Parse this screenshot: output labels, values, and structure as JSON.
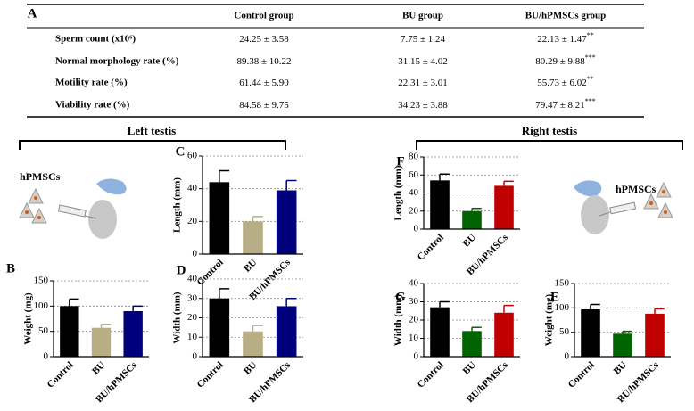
{
  "panel_a": "A",
  "table": {
    "columns": [
      "Control group",
      "BU group",
      "BU/hPMSCs group"
    ],
    "rows": [
      {
        "label": "Sperm count (x10⁶)",
        "cells": [
          {
            "text": "24.25 ± 3.58"
          },
          {
            "text": "7.75 ± 1.24"
          },
          {
            "text": "22.13 ± 1.47",
            "sig": "**"
          }
        ]
      },
      {
        "label": "Normal morphology rate (%)",
        "cells": [
          {
            "text": "89.38 ± 10.22"
          },
          {
            "text": "31.15 ± 4.02"
          },
          {
            "text": "80.29 ± 9.88",
            "sig": "***"
          }
        ]
      },
      {
        "label": "Motility rate (%)",
        "cells": [
          {
            "text": "61.44 ± 5.90"
          },
          {
            "text": "22.31 ± 3.01"
          },
          {
            "text": "55.73 ± 6.02",
            "sig": "**"
          }
        ]
      },
      {
        "label": "Viability rate (%)",
        "cells": [
          {
            "text": "84.58 ± 9.75"
          },
          {
            "text": "34.23 ± 3.88"
          },
          {
            "text": "79.47 ± 8.21",
            "sig": "***"
          }
        ]
      }
    ]
  },
  "sections": {
    "left": "Left testis",
    "right": "Right testis"
  },
  "diagram": {
    "left_cells": "hPMSCs",
    "right_cells": "hPMSCs"
  },
  "chart_data": [
    {
      "type": "bar",
      "panel": "C",
      "ylabel": "Length (mm)",
      "categories": [
        "Control",
        "BU",
        "BU/hPMSCs"
      ],
      "values": [
        44,
        20,
        39
      ],
      "errors": [
        7,
        3,
        6
      ],
      "colors": [
        "#000000",
        "#b8ae86",
        "#00007f"
      ],
      "ylim": [
        0,
        60
      ],
      "yticks": [
        0,
        20,
        40,
        60
      ],
      "grid": true
    },
    {
      "type": "bar",
      "panel": "B",
      "ylabel": "Weight (mg)",
      "categories": [
        "Control",
        "BU",
        "BU/hPMSCs"
      ],
      "values": [
        100,
        57,
        90
      ],
      "errors": [
        14,
        7,
        10
      ],
      "colors": [
        "#000000",
        "#b8ae86",
        "#00007f"
      ],
      "ylim": [
        0,
        150
      ],
      "yticks": [
        0,
        50,
        100,
        150
      ],
      "grid": true
    },
    {
      "type": "bar",
      "panel": "D",
      "ylabel": "Width (mm)",
      "categories": [
        "Control",
        "BU",
        "BU/hPMSCs"
      ],
      "values": [
        30,
        13,
        26
      ],
      "errors": [
        5,
        3,
        4
      ],
      "colors": [
        "#000000",
        "#b8ae86",
        "#00007f"
      ],
      "ylim": [
        0,
        40
      ],
      "yticks": [
        0,
        10,
        20,
        30,
        40
      ],
      "grid": true
    },
    {
      "type": "bar",
      "panel": "F",
      "ylabel": "Length (mm)",
      "categories": [
        "Control",
        "BU",
        "BU/hPMSCs"
      ],
      "values": [
        54,
        20,
        48
      ],
      "errors": [
        7,
        3,
        5
      ],
      "colors": [
        "#000000",
        "#006400",
        "#c00000"
      ],
      "ylim": [
        0,
        80
      ],
      "yticks": [
        0,
        20,
        40,
        60,
        80
      ],
      "grid": true
    },
    {
      "type": "bar",
      "panel": "G",
      "ylabel": "Width (mm)",
      "categories": [
        "Control",
        "BU",
        "BU/hPMSCs"
      ],
      "values": [
        27,
        14,
        24
      ],
      "errors": [
        3,
        2,
        4
      ],
      "colors": [
        "#000000",
        "#006400",
        "#c00000"
      ],
      "ylim": [
        0,
        40
      ],
      "yticks": [
        0,
        10,
        20,
        30,
        40
      ],
      "grid": true
    },
    {
      "type": "bar",
      "panel": "E",
      "ylabel": "Weight (mg)",
      "categories": [
        "Control",
        "BU",
        "BU/hPMSCs"
      ],
      "values": [
        97,
        47,
        88
      ],
      "errors": [
        10,
        5,
        10
      ],
      "colors": [
        "#000000",
        "#006400",
        "#c00000"
      ],
      "ylim": [
        0,
        150
      ],
      "yticks": [
        0,
        50,
        100,
        150
      ],
      "grid": true
    }
  ]
}
